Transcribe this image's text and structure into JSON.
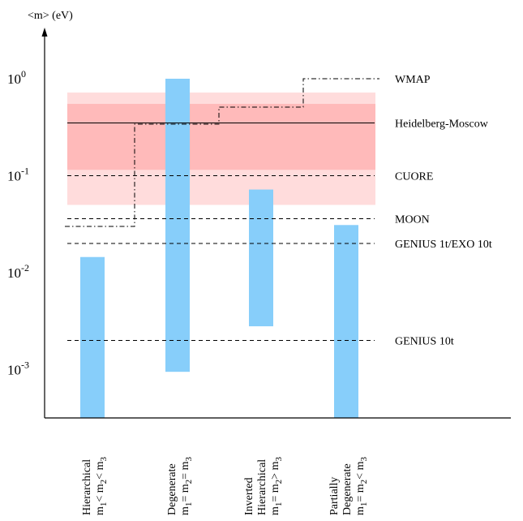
{
  "chart_data": {
    "type": "bar",
    "ylabel": "<m> (eV)",
    "yscale": "log",
    "ylim": [
      0.0002,
      1.9
    ],
    "y_ticks": [
      {
        "value": 1,
        "base": "10",
        "exp": "0"
      },
      {
        "value": 0.1,
        "base": "10",
        "exp": "-1"
      },
      {
        "value": 0.01,
        "base": "10",
        "exp": "-2"
      },
      {
        "value": 0.001,
        "base": "10",
        "exp": "-3"
      }
    ],
    "bars_color": "#87cefa",
    "bars": [
      {
        "lines": [
          {
            "text": "Hierarchical"
          },
          {
            "main": "m",
            "subs": [
              "1",
              "2",
              "3"
            ],
            "ops": [
              "< m",
              "< m"
            ]
          }
        ],
        "low": 0.0001,
        "high": 0.0145
      },
      {
        "lines": [
          {
            "text": "Degenerate"
          },
          {
            "main": "m",
            "subs": [
              "1",
              "2",
              "3"
            ],
            "ops": [
              "= m",
              "= m"
            ]
          }
        ],
        "low": 0.00095,
        "high": 1.0
      },
      {
        "lines": [
          {
            "text": "Inverted"
          },
          {
            "text": "Hierarchical"
          },
          {
            "main": "m",
            "subs": [
              "1",
              "2",
              "3"
            ],
            "ops": [
              "= m",
              "> m"
            ]
          }
        ],
        "low": 0.0028,
        "high": 0.072
      },
      {
        "lines": [
          {
            "text": "Partially"
          },
          {
            "text": "Degenerate"
          },
          {
            "main": "m",
            "subs": [
              "1",
              "2",
              "3"
            ],
            "ops": [
              "= m",
              "< m"
            ]
          }
        ],
        "low": 0.0001,
        "high": 0.031
      }
    ],
    "bands": [
      {
        "name": "outer",
        "low": 0.05,
        "high": 0.72,
        "color": "#ffdcdc"
      },
      {
        "name": "inner",
        "low": 0.115,
        "high": 0.55,
        "color": "#ffbaba"
      }
    ],
    "limits": [
      {
        "label": "WMAP",
        "value": 1.0,
        "style": "none"
      },
      {
        "label": "Heidelberg-Moscow",
        "value": 0.35,
        "style": "solid"
      },
      {
        "label": "CUORE",
        "value": 0.1,
        "style": "dashed"
      },
      {
        "label": "MOON",
        "value": 0.036,
        "style": "dashed"
      },
      {
        "label": "GENIUS 1t/EXO 10t",
        "value": 0.02,
        "style": "dashed"
      },
      {
        "label": "GENIUS 10t",
        "value": 0.002,
        "style": "dashed"
      }
    ],
    "wmap_steps": [
      {
        "from": 0,
        "value": 0.03
      },
      {
        "from": 1,
        "value": 0.34
      },
      {
        "from": 2,
        "value": 0.51
      },
      {
        "from": 3,
        "value": 1.0
      }
    ],
    "colors": {
      "axis": "#000000",
      "wmap_line": "#000000"
    }
  }
}
